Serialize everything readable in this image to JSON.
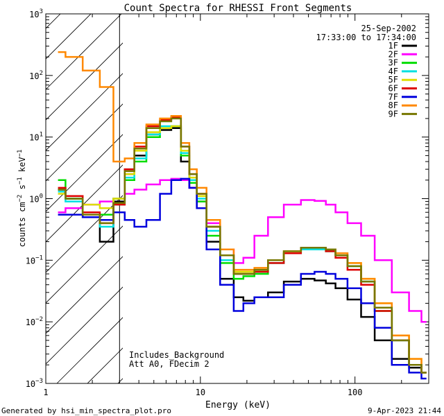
{
  "chart_data": {
    "type": "line",
    "title": "Count Spectra for RHESSI Front Segments",
    "xlabel": "Energy (keV)",
    "ylabel": "counts cm^-2 s^-1 keV^-1",
    "ylabel_parts": {
      "base": "counts cm",
      "exp1": "−2",
      "mid1": " s",
      "exp2": "−1",
      "mid2": " keV",
      "exp3": "−1"
    },
    "xscale": "log",
    "yscale": "log",
    "xlim": [
      1,
      300
    ],
    "ylim": [
      0.001,
      1000
    ],
    "x_ticks": [
      {
        "value": 1,
        "label": "1"
      },
      {
        "value": 10,
        "label": "10"
      },
      {
        "value": 100,
        "label": "100"
      }
    ],
    "y_ticks": [
      {
        "value": 0.001,
        "base": "10",
        "exp": "−3"
      },
      {
        "value": 0.01,
        "base": "10",
        "exp": "−2"
      },
      {
        "value": 0.1,
        "base": "10",
        "exp": "−1"
      },
      {
        "value": 1,
        "base": "10",
        "exp": "0"
      },
      {
        "value": 10,
        "base": "10",
        "exp": "1"
      },
      {
        "value": 100,
        "base": "10",
        "exp": "2"
      },
      {
        "value": 1000,
        "base": "10",
        "exp": "3"
      }
    ],
    "hatched_region": {
      "x_min": 1,
      "x_max": 3
    },
    "date": "25-Sep-2002",
    "time_range": "17:33:00 to 17:34:00",
    "annotations": [
      "Includes_Background",
      "Att A0, FDecim 2"
    ],
    "footer_left": "Generated by hsi_min_spectra_plot.pro",
    "footer_right": "9-Apr-2023 21:44",
    "series": [
      {
        "name": "1F",
        "color": "#000000",
        "x": [
          1.2,
          1.5,
          2,
          2.5,
          3,
          3.5,
          4,
          5,
          6,
          7,
          8,
          9,
          10,
          12,
          15,
          18,
          20,
          25,
          30,
          40,
          50,
          60,
          70,
          80,
          100,
          120,
          150,
          200,
          250,
          290
        ],
        "y": [
          1.4,
          1.0,
          0.5,
          0.2,
          0.9,
          2.5,
          5.0,
          11.0,
          13.0,
          14.0,
          4.0,
          1.5,
          0.7,
          0.2,
          0.05,
          0.025,
          0.022,
          0.025,
          0.03,
          0.045,
          0.05,
          0.047,
          0.042,
          0.035,
          0.023,
          0.012,
          0.005,
          0.0025,
          0.0018,
          0.0015
        ]
      },
      {
        "name": "2F",
        "color": "#ff00ff",
        "x": [
          1.2,
          1.5,
          2,
          2.5,
          3,
          3.5,
          4,
          5,
          6,
          7,
          8,
          9,
          10,
          12,
          15,
          18,
          20,
          25,
          30,
          40,
          50,
          60,
          70,
          80,
          100,
          120,
          150,
          200,
          250,
          290
        ],
        "y": [
          0.6,
          0.7,
          0.8,
          0.9,
          1.0,
          1.2,
          1.4,
          1.7,
          2.0,
          2.1,
          2.0,
          1.5,
          0.9,
          0.4,
          0.15,
          0.09,
          0.11,
          0.25,
          0.5,
          0.8,
          0.95,
          0.92,
          0.8,
          0.6,
          0.4,
          0.25,
          0.1,
          0.03,
          0.015,
          0.01
        ]
      },
      {
        "name": "3F",
        "color": "#00dd00",
        "x": [
          1.2,
          1.5,
          2,
          2.5,
          3,
          3.5,
          4,
          5,
          6,
          7,
          8,
          9,
          10,
          12,
          15,
          18,
          20,
          25,
          30,
          40,
          50,
          60,
          70,
          80,
          100,
          120,
          150,
          200,
          250,
          290
        ],
        "y": [
          2.0,
          1.0,
          0.5,
          0.55,
          1.0,
          2.0,
          4.0,
          10.0,
          14.0,
          15.0,
          5.0,
          1.8,
          0.9,
          0.25,
          0.09,
          0.05,
          0.055,
          0.06,
          0.09,
          0.13,
          0.15,
          0.15,
          0.14,
          0.12,
          0.08,
          0.045,
          0.015,
          0.005,
          0.002,
          0.0015
        ]
      },
      {
        "name": "4F",
        "color": "#00e0e0",
        "x": [
          1.2,
          1.5,
          2,
          2.5,
          3,
          3.5,
          4,
          5,
          6,
          7,
          8,
          9,
          10,
          12,
          15,
          18,
          20,
          25,
          30,
          40,
          50,
          60,
          70,
          80,
          100,
          120,
          150,
          200,
          250,
          290
        ],
        "y": [
          1.3,
          0.9,
          0.5,
          0.35,
          0.8,
          2.2,
          4.5,
          11.0,
          15.0,
          15.0,
          5.5,
          2.0,
          1.0,
          0.3,
          0.1,
          0.06,
          0.06,
          0.065,
          0.09,
          0.13,
          0.15,
          0.15,
          0.14,
          0.12,
          0.08,
          0.045,
          0.017,
          0.005,
          0.002,
          0.0015
        ]
      },
      {
        "name": "5F",
        "color": "#dddd00",
        "x": [
          1.2,
          1.5,
          2,
          2.5,
          3,
          3.5,
          4,
          5,
          6,
          7,
          8,
          9,
          10,
          12,
          15,
          18,
          20,
          25,
          30,
          40,
          50,
          60,
          70,
          80,
          100,
          120,
          150,
          200,
          250,
          290
        ],
        "y": [
          1.2,
          1.1,
          0.8,
          0.7,
          1.0,
          2.5,
          6.0,
          12.0,
          14.0,
          15.0,
          6.0,
          2.2,
          1.1,
          0.35,
          0.12,
          0.065,
          0.065,
          0.07,
          0.1,
          0.14,
          0.16,
          0.16,
          0.15,
          0.13,
          0.09,
          0.05,
          0.02,
          0.006,
          0.0025,
          0.0015
        ]
      },
      {
        "name": "6F",
        "color": "#dd0000",
        "x": [
          1.2,
          1.5,
          2,
          2.5,
          3,
          3.5,
          4,
          5,
          6,
          7,
          8,
          9,
          10,
          12,
          15,
          18,
          20,
          25,
          30,
          40,
          50,
          60,
          70,
          80,
          100,
          120,
          150,
          200,
          250,
          290
        ],
        "y": [
          1.5,
          1.1,
          0.6,
          0.4,
          0.8,
          3.0,
          7.0,
          15.0,
          19.0,
          21.0,
          7.0,
          2.5,
          1.2,
          0.35,
          0.12,
          0.06,
          0.06,
          0.065,
          0.09,
          0.13,
          0.16,
          0.16,
          0.14,
          0.11,
          0.07,
          0.04,
          0.015,
          0.005,
          0.002,
          0.0015
        ]
      },
      {
        "name": "7F",
        "color": "#0000dd",
        "x": [
          1.2,
          1.5,
          2,
          2.5,
          3,
          3.5,
          4,
          5,
          6,
          7,
          8,
          9,
          10,
          12,
          15,
          18,
          20,
          25,
          30,
          40,
          50,
          60,
          70,
          80,
          100,
          120,
          150,
          200,
          250,
          290
        ],
        "y": [
          0.55,
          0.55,
          0.5,
          0.45,
          0.6,
          0.45,
          0.35,
          0.45,
          1.2,
          2.0,
          2.1,
          1.5,
          0.7,
          0.15,
          0.04,
          0.015,
          0.02,
          0.025,
          0.025,
          0.04,
          0.06,
          0.065,
          0.06,
          0.05,
          0.035,
          0.02,
          0.008,
          0.002,
          0.0015,
          0.0012
        ]
      },
      {
        "name": "8F",
        "color": "#ff8800",
        "x": [
          1.2,
          1.5,
          2,
          2.5,
          3,
          3.5,
          4,
          5,
          6,
          7,
          8,
          9,
          10,
          12,
          15,
          18,
          20,
          25,
          30,
          40,
          50,
          60,
          70,
          80,
          100,
          120,
          150,
          200,
          250,
          290
        ],
        "y": [
          240,
          200,
          120,
          65,
          4,
          4.5,
          8,
          16,
          20,
          22,
          8,
          3.0,
          1.5,
          0.45,
          0.15,
          0.07,
          0.07,
          0.075,
          0.1,
          0.14,
          0.16,
          0.16,
          0.15,
          0.13,
          0.09,
          0.05,
          0.02,
          0.006,
          0.0025,
          0.0015
        ]
      },
      {
        "name": "9F",
        "color": "#777700",
        "x": [
          1.2,
          1.5,
          2,
          2.5,
          3,
          3.5,
          4,
          5,
          6,
          7,
          8,
          9,
          10,
          12,
          15,
          18,
          20,
          25,
          30,
          40,
          50,
          60,
          70,
          80,
          100,
          120,
          150,
          200,
          250,
          290
        ],
        "y": [
          1.4,
          1.0,
          0.55,
          0.4,
          0.85,
          2.8,
          6.5,
          14.0,
          18.0,
          20.0,
          7.0,
          2.5,
          1.2,
          0.35,
          0.12,
          0.06,
          0.06,
          0.07,
          0.1,
          0.14,
          0.16,
          0.16,
          0.15,
          0.12,
          0.08,
          0.045,
          0.017,
          0.005,
          0.002,
          0.0015
        ]
      }
    ]
  }
}
